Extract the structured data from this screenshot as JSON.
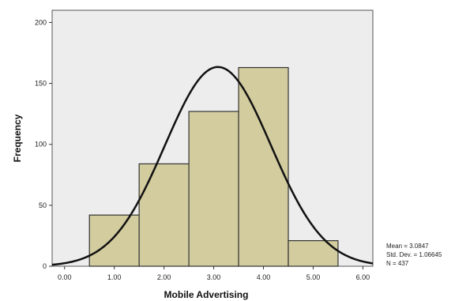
{
  "chart_data": {
    "type": "bar",
    "subtype": "histogram",
    "xlabel": "Mobile Advertising",
    "ylabel": "Frequency",
    "x_ticks": [
      "0.00",
      "1.00",
      "2.00",
      "3.00",
      "4.00",
      "5.00",
      "6.00"
    ],
    "y_ticks": [
      "0",
      "50",
      "100",
      "150",
      "200"
    ],
    "xlim": [
      -0.25,
      6.2
    ],
    "ylim": [
      0,
      210
    ],
    "bins": [
      {
        "x0": 0.5,
        "x1": 1.5,
        "value": 42
      },
      {
        "x0": 1.5,
        "x1": 2.5,
        "value": 84
      },
      {
        "x0": 2.5,
        "x1": 3.5,
        "value": 127
      },
      {
        "x0": 3.5,
        "x1": 4.5,
        "value": 163
      },
      {
        "x0": 4.5,
        "x1": 5.5,
        "value": 21
      }
    ],
    "normal_curve": {
      "mean": 3.0847,
      "sd": 1.06645,
      "n": 437
    },
    "stats": {
      "mean_label": "Mean = 3.0847",
      "sd_label": "Std. Dev. = 1.06645",
      "n_label": "N = 437"
    },
    "colors": {
      "plot_background": "#ededed",
      "bar_fill": "#d3cc9f",
      "bar_stroke": "#333333",
      "curve": "#111111"
    },
    "grid": false,
    "legend": "none"
  }
}
